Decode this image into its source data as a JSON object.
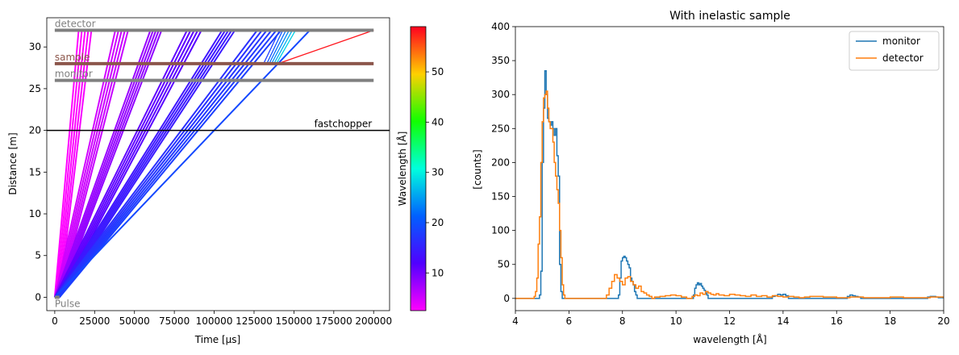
{
  "chart_data": [
    {
      "type": "line",
      "xlabel": "Time [µs]",
      "ylabel": "Distance [m]",
      "xlim": [
        -5000,
        210000
      ],
      "ylim": [
        -1.6,
        33.5
      ],
      "xticks": [
        0,
        25000,
        50000,
        75000,
        100000,
        125000,
        150000,
        175000,
        200000
      ],
      "xtick_labels": [
        "0",
        "25000",
        "50000",
        "75000",
        "100000",
        "125000",
        "150000",
        "175000",
        "200000"
      ],
      "yticks": [
        0,
        5,
        10,
        15,
        20,
        25,
        30
      ],
      "ytick_labels": [
        "0",
        "5",
        "10",
        "15",
        "20",
        "25",
        "30"
      ],
      "grid": false,
      "components": [
        {
          "name": "detector",
          "distance": 32,
          "t_range": [
            0,
            200000
          ],
          "color": "#808080"
        },
        {
          "name": "sample",
          "distance": 28,
          "t_range": [
            0,
            200000
          ],
          "color": "#8c564b"
        },
        {
          "name": "monitor",
          "distance": 26,
          "t_range": [
            0,
            200000
          ],
          "color": "#808080"
        },
        {
          "name": "fastchopper",
          "distance": 20,
          "t_range": [
            -5000,
            210000
          ],
          "color": "#000000"
        },
        {
          "name": "Pulse",
          "distance": 0,
          "t_range": [
            0,
            3000
          ],
          "color": "#808080"
        }
      ],
      "neutron_groups": [
        {
          "t0_range": [
            0,
            3000
          ],
          "t_detector_range": [
            15000,
            23000
          ],
          "wavelength_range": [
            2,
            3
          ],
          "count": 5
        },
        {
          "t0_range": [
            0,
            3000
          ],
          "t_detector_range": [
            38000,
            46000
          ],
          "wavelength_range": [
            5,
            5.5
          ],
          "count": 5
        },
        {
          "t0_range": [
            0,
            3000
          ],
          "t_detector_range": [
            60000,
            67000
          ],
          "wavelength_range": [
            8,
            8.5
          ],
          "count": 5
        },
        {
          "t0_range": [
            0,
            3000
          ],
          "t_detector_range": [
            83000,
            92000
          ],
          "wavelength_range": [
            11,
            11.5
          ],
          "count": 5
        },
        {
          "t0_range": [
            0,
            3000
          ],
          "t_detector_range": [
            105000,
            113000
          ],
          "wavelength_range": [
            14,
            14.5
          ],
          "count": 5
        },
        {
          "t0_range": [
            0,
            3000
          ],
          "t_detector_range": [
            127000,
            142000
          ],
          "wavelength_range": [
            16.5,
            18
          ],
          "count": 6
        }
      ],
      "scattered": [
        {
          "t_sample": [
            131000,
            133000,
            134500,
            136000,
            137500,
            139000
          ],
          "t_detector": [
            141000,
            143000,
            145000,
            147000,
            149000,
            151000
          ],
          "wavelength": [
            18,
            20,
            22,
            24,
            26,
            28
          ]
        },
        {
          "t_sample": [
            140000
          ],
          "t_detector": [
            200000
          ],
          "wavelength": [
            58
          ]
        }
      ],
      "direct_beam": {
        "t_detector": 160000,
        "wavelength": 19
      },
      "colorbar": {
        "label": "Wavelength [Å]",
        "range": [
          2.5,
          59
        ],
        "ticks": [
          10,
          20,
          30,
          40,
          50
        ],
        "tick_labels": [
          "10",
          "20",
          "30",
          "40",
          "50"
        ],
        "colormap": "gist_rainbow_r"
      }
    },
    {
      "type": "line",
      "title": "With inelastic sample",
      "xlabel": "wavelength [Å]",
      "ylabel": "[counts]",
      "xlim": [
        4,
        20
      ],
      "ylim": [
        -18,
        400
      ],
      "xticks": [
        4,
        6,
        8,
        10,
        12,
        14,
        16,
        18,
        20
      ],
      "xtick_labels": [
        "4",
        "6",
        "8",
        "10",
        "12",
        "14",
        "16",
        "18",
        "20"
      ],
      "yticks": [
        0,
        50,
        100,
        150,
        200,
        250,
        300,
        350,
        400
      ],
      "ytick_labels": [
        "0",
        "50",
        "100",
        "150",
        "200",
        "250",
        "300",
        "350",
        "400"
      ],
      "grid": false,
      "legend": "top-right",
      "series": [
        {
          "name": "monitor",
          "color": "#1f77b4",
          "x": [
            4.0,
            4.8,
            4.9,
            4.95,
            5.0,
            5.05,
            5.1,
            5.15,
            5.2,
            5.25,
            5.3,
            5.35,
            5.4,
            5.45,
            5.5,
            5.55,
            5.6,
            5.65,
            5.7,
            5.75,
            7.8,
            7.85,
            7.9,
            7.95,
            8.0,
            8.05,
            8.1,
            8.15,
            8.2,
            8.25,
            8.3,
            8.35,
            8.4,
            8.45,
            8.5,
            8.55,
            10.6,
            10.65,
            10.7,
            10.75,
            10.8,
            10.85,
            10.9,
            10.95,
            11.0,
            11.05,
            11.1,
            11.15,
            11.2,
            11.3,
            13.5,
            13.6,
            13.7,
            13.8,
            13.9,
            14.0,
            14.1,
            14.2,
            16.3,
            16.4,
            16.5,
            16.6,
            16.7,
            16.8,
            16.9,
            19.3,
            19.4,
            19.5,
            19.6,
            19.7,
            19.8,
            20.0
          ],
          "values": [
            0,
            0,
            5,
            40,
            200,
            280,
            335,
            300,
            265,
            260,
            255,
            260,
            250,
            240,
            250,
            210,
            180,
            50,
            10,
            0,
            0,
            5,
            30,
            55,
            60,
            62,
            60,
            55,
            50,
            45,
            30,
            25,
            20,
            10,
            5,
            0,
            0,
            5,
            15,
            20,
            23,
            20,
            22,
            18,
            15,
            12,
            8,
            5,
            0,
            0,
            0,
            3,
            4,
            6,
            5,
            6,
            4,
            0,
            0,
            3,
            5,
            4,
            3,
            2,
            0,
            0,
            2,
            3,
            3,
            2,
            1,
            0
          ]
        },
        {
          "name": "detector",
          "color": "#ff7f0e",
          "x": [
            4.0,
            4.7,
            4.75,
            4.8,
            4.85,
            4.9,
            4.95,
            5.0,
            5.05,
            5.1,
            5.15,
            5.2,
            5.25,
            5.3,
            5.35,
            5.4,
            5.45,
            5.5,
            5.55,
            5.6,
            5.65,
            5.7,
            5.75,
            5.8,
            5.85,
            7.3,
            7.4,
            7.5,
            7.6,
            7.7,
            7.8,
            7.9,
            8.0,
            8.1,
            8.2,
            8.3,
            8.4,
            8.5,
            8.6,
            8.7,
            8.8,
            8.9,
            9.0,
            9.1,
            9.2,
            9.4,
            9.6,
            9.8,
            10.0,
            10.2,
            10.4,
            10.6,
            10.7,
            10.8,
            10.9,
            11.0,
            11.1,
            11.2,
            11.3,
            11.4,
            11.5,
            11.6,
            11.8,
            12.0,
            12.2,
            12.4,
            12.6,
            12.8,
            13.0,
            13.2,
            13.4,
            13.6,
            13.8,
            14.0,
            14.2,
            14.4,
            14.6,
            14.8,
            15.0,
            15.5,
            16.0,
            16.5,
            17.0,
            17.5,
            18.0,
            18.5,
            19.0,
            19.5,
            20.0
          ],
          "values": [
            0,
            3,
            10,
            30,
            80,
            120,
            200,
            260,
            295,
            300,
            305,
            280,
            260,
            250,
            250,
            230,
            200,
            180,
            160,
            140,
            100,
            60,
            20,
            5,
            0,
            0,
            5,
            15,
            25,
            35,
            30,
            25,
            20,
            30,
            32,
            25,
            20,
            15,
            18,
            10,
            8,
            5,
            3,
            0,
            2,
            3,
            4,
            5,
            4,
            2,
            0,
            3,
            5,
            4,
            8,
            6,
            10,
            8,
            6,
            5,
            7,
            5,
            4,
            6,
            5,
            4,
            3,
            5,
            3,
            4,
            2,
            4,
            3,
            2,
            3,
            2,
            1,
            2,
            3,
            2,
            1,
            2,
            1,
            1,
            2,
            1,
            1,
            2,
            0
          ]
        }
      ]
    }
  ]
}
